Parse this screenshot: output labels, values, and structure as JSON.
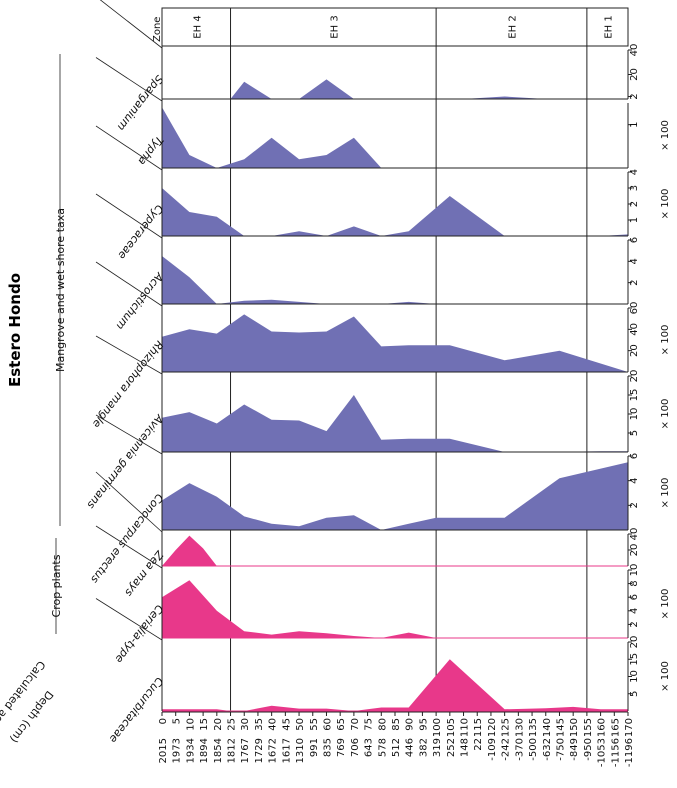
{
  "chart_data": {
    "type": "area",
    "title": "Estero Hondo",
    "orientation": "rotated-90-clockwise",
    "depth_label": "Depth (cm)",
    "age_label": "Calculated age (cal yr AD)",
    "zone_header": "Zone",
    "depths": [
      "0",
      "5",
      "10",
      "15",
      "20",
      "25",
      "30",
      "35",
      "40",
      "45",
      "50",
      "55",
      "60",
      "65",
      "70",
      "75",
      "80",
      "85",
      "90",
      "95",
      "100",
      "105",
      "110",
      "115",
      "120",
      "125",
      "130",
      "135",
      "140",
      "145",
      "150",
      "155",
      "160",
      "165",
      "170"
    ],
    "ages": [
      "2015",
      "1973",
      "1934",
      "1894",
      "1854",
      "1812",
      "1767",
      "1729",
      "1672",
      "1617",
      "1310",
      "991",
      "835",
      "769",
      "706",
      "643",
      "578",
      "512",
      "446",
      "382",
      "319",
      "252",
      "148",
      "22",
      "-109",
      "-242",
      "-370",
      "-500",
      "-632",
      "-750",
      "-849",
      "-950",
      "-1053",
      "-1156",
      "-1196"
    ],
    "zones": [
      {
        "label": "EH 4",
        "from": 0,
        "to": 25
      },
      {
        "label": "EH 3",
        "from": 25,
        "to": 100
      },
      {
        "label": "EH 2",
        "from": 100,
        "to": 155
      },
      {
        "label": "EH 1",
        "from": 155,
        "to": 170
      }
    ],
    "group_labels": [
      {
        "label": "Mangrove and wet shore taxa",
        "first": 0,
        "last": 6
      },
      {
        "label": "Crop plants",
        "first": 7,
        "last": 8
      }
    ],
    "colors": {
      "mangrove": "#7070b4",
      "crop": "#e8388a",
      "line": "#222222"
    },
    "series": [
      {
        "name": "Sparganium",
        "group": "mangrove",
        "max": 40,
        "ticks": [
          "2",
          "20",
          "40"
        ],
        "tick_vals": [
          2,
          20,
          40
        ],
        "mult": "",
        "points": [
          [
            0,
            0
          ],
          [
            10,
            0
          ],
          [
            20,
            0
          ],
          [
            25,
            0
          ],
          [
            30,
            14
          ],
          [
            40,
            0
          ],
          [
            50,
            0
          ],
          [
            60,
            16
          ],
          [
            70,
            0
          ],
          [
            80,
            0
          ],
          [
            90,
            0
          ],
          [
            100,
            0
          ],
          [
            110,
            0
          ],
          [
            125,
            2
          ],
          [
            140,
            0
          ],
          [
            150,
            0
          ],
          [
            160,
            0
          ],
          [
            170,
            0
          ]
        ]
      },
      {
        "name": "Typha",
        "group": "mangrove",
        "max": 1.5,
        "ticks": [
          "1"
        ],
        "tick_vals": [
          1
        ],
        "mult": "× 100",
        "points": [
          [
            0,
            1.4
          ],
          [
            10,
            0.3
          ],
          [
            20,
            0
          ],
          [
            30,
            0.2
          ],
          [
            40,
            0.7
          ],
          [
            50,
            0.2
          ],
          [
            60,
            0.3
          ],
          [
            70,
            0.7
          ],
          [
            80,
            0
          ],
          [
            90,
            0
          ],
          [
            100,
            0
          ],
          [
            120,
            0
          ],
          [
            140,
            0
          ],
          [
            160,
            0
          ],
          [
            170,
            0
          ]
        ]
      },
      {
        "name": "Cyperaceae",
        "group": "mangrove",
        "max": 4,
        "ticks": [
          "1",
          "2",
          "3",
          "4"
        ],
        "tick_vals": [
          1,
          2,
          3,
          4
        ],
        "mult": "× 100",
        "points": [
          [
            0,
            3
          ],
          [
            10,
            1.5
          ],
          [
            20,
            1.2
          ],
          [
            30,
            0
          ],
          [
            40,
            0
          ],
          [
            50,
            0.3
          ],
          [
            60,
            0
          ],
          [
            70,
            0.6
          ],
          [
            80,
            0
          ],
          [
            90,
            0.3
          ],
          [
            105,
            2.5
          ],
          [
            125,
            0
          ],
          [
            140,
            0
          ],
          [
            160,
            0
          ],
          [
            170,
            0.1
          ]
        ]
      },
      {
        "name": "Acrostichum",
        "group": "mangrove",
        "max": 6,
        "ticks": [
          "2",
          "4",
          "6"
        ],
        "tick_vals": [
          2,
          4,
          6
        ],
        "mult": "",
        "points": [
          [
            0,
            4.5
          ],
          [
            10,
            2.5
          ],
          [
            20,
            0
          ],
          [
            30,
            0.3
          ],
          [
            40,
            0.4
          ],
          [
            50,
            0.2
          ],
          [
            60,
            0
          ],
          [
            70,
            0
          ],
          [
            80,
            0
          ],
          [
            90,
            0.2
          ],
          [
            100,
            0
          ],
          [
            120,
            0
          ],
          [
            140,
            0
          ],
          [
            160,
            0
          ],
          [
            170,
            0
          ]
        ]
      },
      {
        "name": "Rhizophora mangle",
        "group": "mangrove",
        "max": 60,
        "ticks": [
          "20",
          "40",
          "60"
        ],
        "tick_vals": [
          20,
          40,
          60
        ],
        "mult": "× 100",
        "points": [
          [
            0,
            33
          ],
          [
            10,
            40
          ],
          [
            20,
            36
          ],
          [
            30,
            54
          ],
          [
            40,
            38
          ],
          [
            50,
            37
          ],
          [
            60,
            38
          ],
          [
            70,
            52
          ],
          [
            80,
            24
          ],
          [
            90,
            25
          ],
          [
            105,
            25
          ],
          [
            125,
            11
          ],
          [
            145,
            20
          ],
          [
            170,
            0
          ]
        ]
      },
      {
        "name": "Avicennia germinans",
        "group": "mangrove",
        "max": 20,
        "ticks": [
          "5",
          "10",
          "15",
          "20"
        ],
        "tick_vals": [
          5,
          10,
          15,
          20
        ],
        "mult": "× 100",
        "points": [
          [
            0,
            9
          ],
          [
            10,
            10.5
          ],
          [
            20,
            7.5
          ],
          [
            30,
            12.5
          ],
          [
            40,
            8.5
          ],
          [
            50,
            8.3
          ],
          [
            60,
            5.5
          ],
          [
            70,
            15
          ],
          [
            80,
            3.2
          ],
          [
            90,
            3.5
          ],
          [
            105,
            3.5
          ],
          [
            125,
            0
          ],
          [
            140,
            0
          ],
          [
            160,
            0.2
          ],
          [
            170,
            0.2
          ]
        ]
      },
      {
        "name": "Conocarpus erectus",
        "group": "mangrove",
        "max": 6,
        "ticks": [
          "2",
          "4",
          "6"
        ],
        "tick_vals": [
          2,
          4,
          6
        ],
        "mult": "× 100",
        "points": [
          [
            0,
            2.4
          ],
          [
            10,
            3.8
          ],
          [
            20,
            2.7
          ],
          [
            30,
            1.1
          ],
          [
            40,
            0.5
          ],
          [
            50,
            0.3
          ],
          [
            60,
            1
          ],
          [
            70,
            1.2
          ],
          [
            80,
            0
          ],
          [
            90,
            0.5
          ],
          [
            100,
            1
          ],
          [
            125,
            1
          ],
          [
            145,
            4.2
          ],
          [
            170,
            5.5
          ]
        ]
      },
      {
        "name": "Zea mays",
        "group": "crop",
        "max": 40,
        "ticks": [
          "20",
          "40"
        ],
        "tick_vals": [
          20,
          40
        ],
        "mult": "",
        "points": [
          [
            0,
            0
          ],
          [
            5,
            20
          ],
          [
            10,
            38
          ],
          [
            15,
            22
          ],
          [
            20,
            0
          ],
          [
            25,
            0
          ],
          [
            60,
            0
          ],
          [
            100,
            0
          ],
          [
            140,
            0
          ],
          [
            170,
            0
          ]
        ]
      },
      {
        "name": "Cerialia-type",
        "group": "crop",
        "max": 10,
        "ticks": [
          "2",
          "4",
          "6",
          "8",
          "10"
        ],
        "tick_vals": [
          2,
          4,
          6,
          8,
          10
        ],
        "mult": "× 100",
        "points": [
          [
            0,
            6
          ],
          [
            10,
            8.5
          ],
          [
            20,
            4
          ],
          [
            30,
            1
          ],
          [
            40,
            0.5
          ],
          [
            50,
            1
          ],
          [
            60,
            0.7
          ],
          [
            70,
            0.3
          ],
          [
            80,
            0
          ],
          [
            90,
            0.8
          ],
          [
            100,
            0
          ],
          [
            140,
            0
          ],
          [
            170,
            0
          ]
        ]
      },
      {
        "name": "Cucurbitaceae",
        "group": "crop",
        "max": 20,
        "ticks": [
          "5",
          "10",
          "15",
          "20"
        ],
        "tick_vals": [
          5,
          10,
          15,
          20
        ],
        "mult": "× 100",
        "points": [
          [
            0,
            0.5
          ],
          [
            10,
            0.5
          ],
          [
            20,
            0.5
          ],
          [
            25,
            0
          ],
          [
            30,
            0
          ],
          [
            40,
            1.5
          ],
          [
            50,
            0.7
          ],
          [
            60,
            0.7
          ],
          [
            70,
            0
          ],
          [
            80,
            1
          ],
          [
            90,
            1
          ],
          [
            105,
            15
          ],
          [
            125,
            0.5
          ],
          [
            140,
            0.8
          ],
          [
            150,
            1.2
          ],
          [
            160,
            0.5
          ],
          [
            170,
            0.5
          ]
        ]
      }
    ]
  }
}
